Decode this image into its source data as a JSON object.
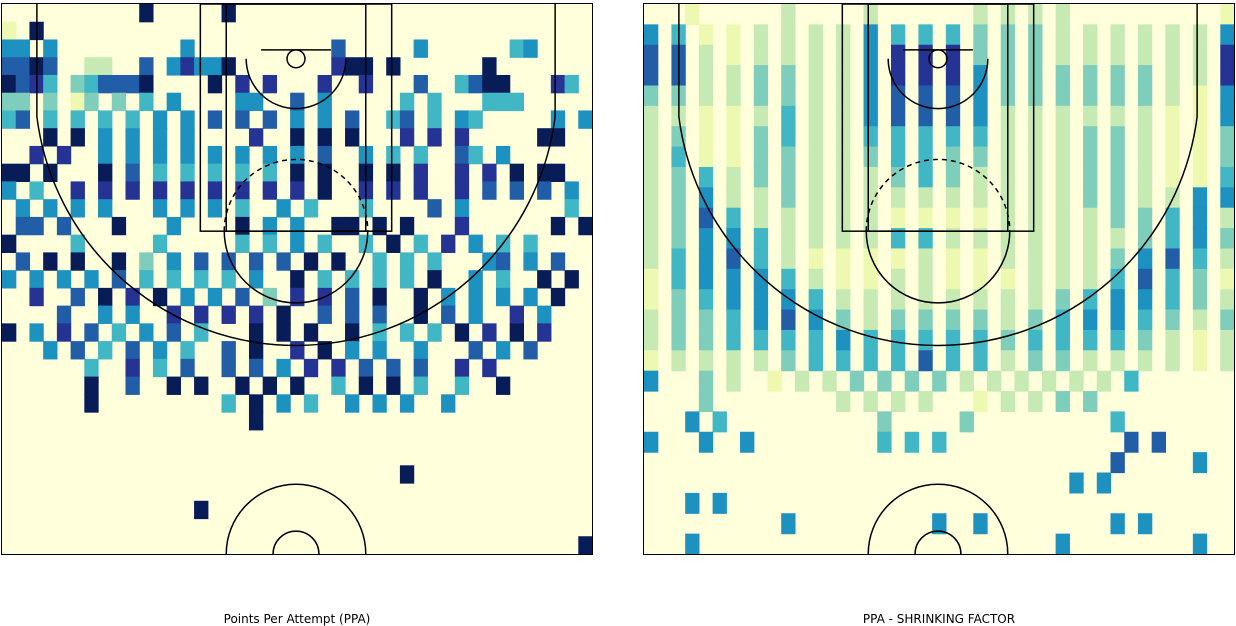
{
  "chart_data": [
    {
      "type": "heatmap",
      "title": "Points Per Attempt (PPA)",
      "grid": false,
      "legend": "none",
      "colormap": [
        "#ffffd9",
        "#edf8b1",
        "#c7e9b4",
        "#7fcdbb",
        "#41b6c4",
        "#1d91c0",
        "#225ea8",
        "#253494",
        "#081d58"
      ],
      "rows": [
        "..........8.....8..........................",
        "1.8........................................",
        "55.5.........5..........6.....5......45....",
        "6686..22..6.57558.......788.8......8.......",
        "8674.346668....8.7.7...7..7...6..4688...74.",
        "33.3.13.3.4.5....55..6.5.....4.4...444.....",
        "46.4.4.4.4.5.5.6.6.6.5.5.6..46.4.54.....5.5",
        "...8.8.5.5.5.5....7..8.8.8...7.7.7.....88..",
        "..7.7..5.5.5.5.5.5.5.5.6..5.4.4..64.5......",
        "88.8...8.6.4.4.4.4.4.8.8..8.8.7..7.7.8.88..",
        "5.4..7.7.7.7.7.7.7.7.7.8..7.7.7..7.6.6.6.5.",
        ".5.5.5.5...5.5.5.4..5.4...4....6.5.......4.",
        ".66.6...8...5....8.5.5..88.8.8...7......8.8",
        "8....4.....4.....4.4.5.4..4.8.4.7.5.4.4....",
        ".6.8.8..8.3.5.6.6.6.6.8.8..4.4.4...56.5.6..",
        "5.5.5.5.6.4.4.4.4.5..8.4.4.4.4.8..5.4..8.8.",
        "..7..6.8.7.8.5.5.6.3.7.7.6.8..8.5.5.5.5.8..",
        "....6..5.5..7.7.7.7.8..6.6.6..8.6.5..7.5...",
        "8.5.7.6.4.5.6.4...8.8.8..8.4.4.4.8.7.8.7...",
        "...5.6.4.6.5.4..6.8..7.8.5.5..5...6.5.6....",
        "......4..7.4.6..6.6.5.7.7.6.6.6..7.7.......",
        "......8..6..8.8..8.8.8..4.8.8.4..4..8......",
        "......8.........4.8.5.4..5.5.5..5..........",
        "..................8........................",
        "...........................................",
        "...........................................",
        ".............................8.............",
        "...........................................",
        "..............8............................",
        "...........................................",
        "..........................................8"
      ]
    },
    {
      "type": "heatmap",
      "title": "PPA - SHRINKING FACTOR",
      "grid": false,
      "legend": "none",
      "colormap": [
        "#ffffd9",
        "#edf8b1",
        "#c7e9b4",
        "#7fcdbb",
        "#41b6c4",
        "#1d91c0",
        "#225ea8",
        "#253494",
        "#081d58"
      ],
      "rows": [
        "...1......2.....2.......2.2.2.2...........1",
        "5.4.1.1.2.2.2.2.5.4.4.4.3.3.3.2.2.2.2.2.2.5",
        "6.6.2.1.2.2.2.2.5.7.7.7.3.3.3.2.2.2.2.2.2.7",
        "6.6.2.2.3.3.2.2.5.7.7.7.5.3.3.3.3.3.3.2.2.7",
        "3.3.2.2.3.3.2.2.5.6.6.6.5.3.3.3.3.3.3.2.1.5",
        "2.2.1.1.2.4.2.2.5.6.6.6.5.2.2.2.2.2.2.1.1.5",
        "2.3.1.1.3.4.2.2.4.4.4.4.4.2.2.2.3.3.2.1.1.3",
        "2.4.1.1.3.3.2.2.3.4.4.3.3.2.2.2.3.3.2.1.1.3",
        "2.3.4.2.3.3.2.2.2.3.4.3.2.2.2.2.3.3.2.1.1.4",
        "2.3.5.2.2.3.2.2.2.2.2.2.2.2.2.2.3.3.2.2.5.5",
        "2.3.6.4.2.2.2.2.2.1.1.1.1.2.2.2.2.3.3.4.5.2",
        "2.3.5.5.4.2.2.2.2.4.4.2.2.2.2.2.2.2.3.4.5.3",
        "2.4.5.6.4.2.1.1.1.1.2.1.1.2.2.2.2.3.5.6.4.2",
        "1.4.5.5.5.4.2.1.1.2.2.1.1.1.2.2.2.4.6.4.3.1",
        "1.3.4.5.5.5.4.2.2.2.2.2.2.2.2.3.4.5.5.4.3.2",
        "2.3.3.4.5.6.5.3.2.3.3.3.3.2.3.4.5.5.4.3.2.3",
        "2.3.3.4.4.4.4.5.4.4.4.4.4.3.4.4.4.4.3.2.1.2",
        "1.2.2.2.2.3.4.4.4.4.6.4.4.2.3.3.2.2.2.2.1.2",
        "5...3.2..1.2.2.3.3.3.3.2.2.2.2.2.2.4.......",
        "....3.........2.2.2.2...1.2.2.3.3..........",
        "...5.4...........3.....3..........4........",
        "5...5..5.........4.4.4.............6.6.....",
        "..................................6.....5..",
        "...............................5.5.........",
        "...5.5.....................................",
        "..........5..........5..5.........5.5......",
        "...5..........................5.........5.."
      ]
    }
  ]
}
